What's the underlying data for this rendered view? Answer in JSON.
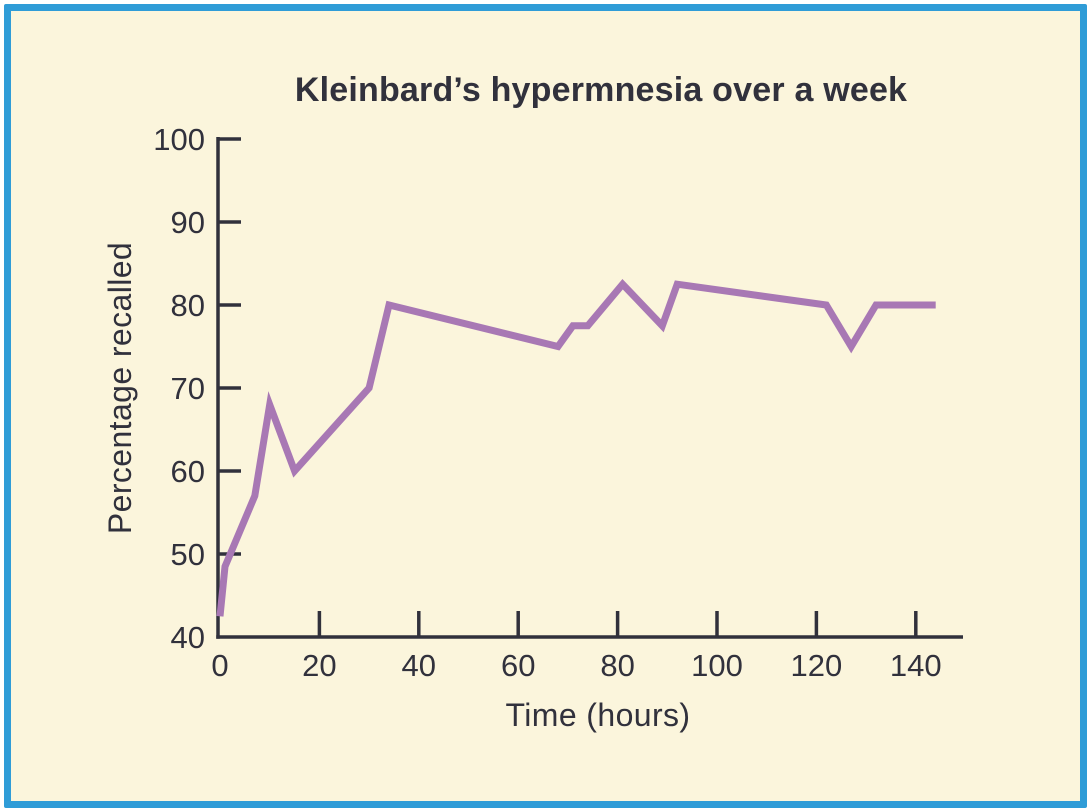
{
  "panel": {
    "background_color": "#fbf5dc",
    "border_color": "#2f9cd7",
    "ink_color": "#31313c"
  },
  "chart_data": {
    "type": "line",
    "title": "Kleinbard’s hypermnesia over a week",
    "xlabel": "Time (hours)",
    "ylabel": "Percentage recalled",
    "xlim": [
      0,
      150
    ],
    "ylim": [
      40,
      100
    ],
    "x_ticks": [
      0,
      20,
      40,
      60,
      80,
      100,
      120,
      140
    ],
    "y_ticks": [
      40,
      50,
      60,
      70,
      80,
      90,
      100
    ],
    "grid": false,
    "legend": false,
    "line_color": "#a878b4",
    "series": [
      {
        "name": "Percentage recalled",
        "x": [
          0,
          1,
          7,
          10,
          15,
          30,
          34,
          68,
          71,
          74,
          81,
          89,
          92,
          122,
          127,
          132,
          144
        ],
        "y": [
          42.5,
          48.5,
          57,
          68,
          60,
          70,
          80,
          75,
          77.5,
          77.5,
          82.5,
          77.5,
          82.5,
          80,
          75,
          80,
          80
        ]
      }
    ]
  }
}
